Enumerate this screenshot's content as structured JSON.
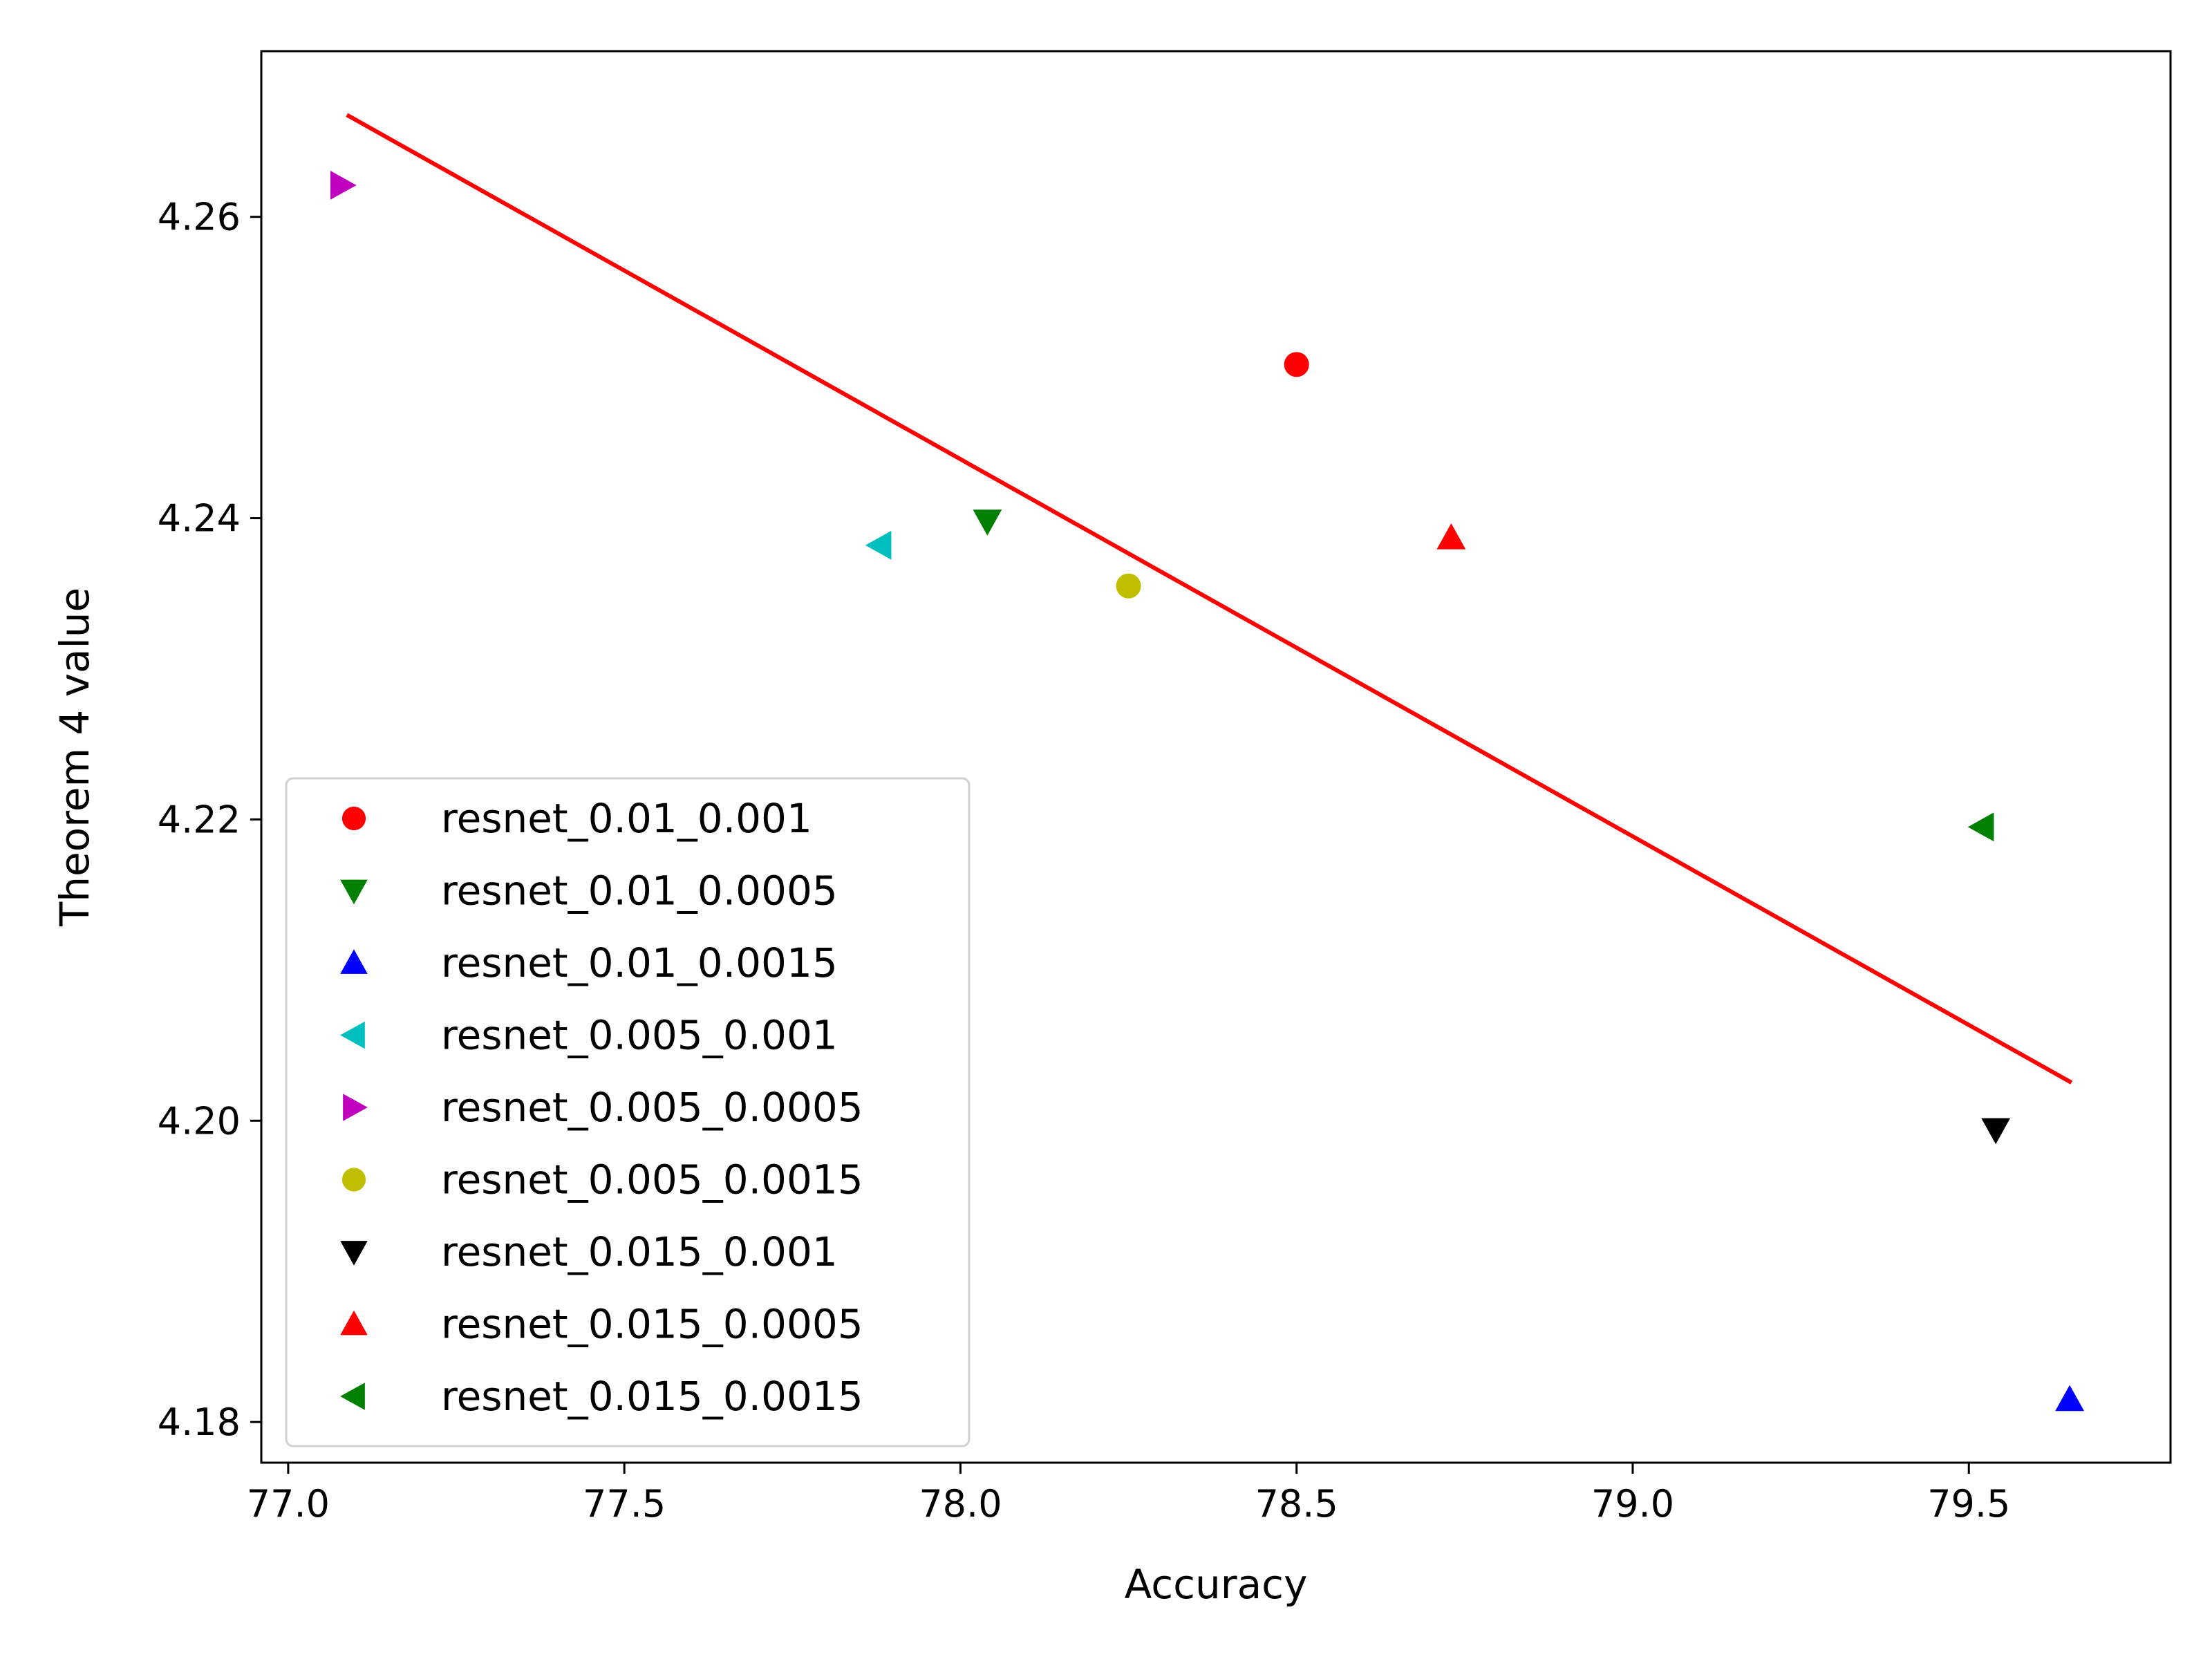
{
  "chart_data": {
    "type": "scatter",
    "title": "",
    "xlabel": "Accuracy",
    "ylabel": "Theorem 4 value",
    "xlim": [
      76.96,
      79.8
    ],
    "ylim": [
      4.1773,
      4.271
    ],
    "xticks": [
      77.0,
      77.5,
      78.0,
      78.5,
      79.0,
      79.5
    ],
    "xtick_labels": [
      "77.0",
      "77.5",
      "78.0",
      "78.5",
      "79.0",
      "79.5"
    ],
    "yticks": [
      4.18,
      4.2,
      4.22,
      4.24,
      4.26
    ],
    "ytick_labels": [
      "4.18",
      "4.20",
      "4.22",
      "4.24",
      "4.26"
    ],
    "grid": false,
    "legend_position": "lower-left",
    "series": [
      {
        "name": "resnet_0.01_0.001",
        "marker": "circle",
        "color": "#ff0000",
        "x": 78.5,
        "y": 4.2502
      },
      {
        "name": "resnet_0.01_0.0005",
        "marker": "triangle-down",
        "color": "#008000",
        "x": 78.04,
        "y": 4.2398
      },
      {
        "name": "resnet_0.01_0.0015",
        "marker": "triangle-up",
        "color": "#0000ff",
        "x": 79.65,
        "y": 4.1815
      },
      {
        "name": "resnet_0.005_0.001",
        "marker": "triangle-left",
        "color": "#00bfbf",
        "x": 77.88,
        "y": 4.2382
      },
      {
        "name": "resnet_0.005_0.0005",
        "marker": "triangle-right",
        "color": "#bf00bf",
        "x": 77.08,
        "y": 4.2621
      },
      {
        "name": "resnet_0.005_0.0015",
        "marker": "circle",
        "color": "#bfbf00",
        "x": 78.25,
        "y": 4.2355
      },
      {
        "name": "resnet_0.015_0.001",
        "marker": "triangle-down",
        "color": "#000000",
        "x": 79.54,
        "y": 4.1994
      },
      {
        "name": "resnet_0.015_0.0005",
        "marker": "triangle-up",
        "color": "#ff0000",
        "x": 78.73,
        "y": 4.2387
      },
      {
        "name": "resnet_0.015_0.0015",
        "marker": "triangle-left",
        "color": "#008000",
        "x": 79.52,
        "y": 4.2195
      }
    ],
    "trend_line": {
      "color": "#ff0000",
      "x": [
        77.09,
        79.65
      ],
      "y": [
        4.2667,
        4.2026
      ]
    }
  }
}
